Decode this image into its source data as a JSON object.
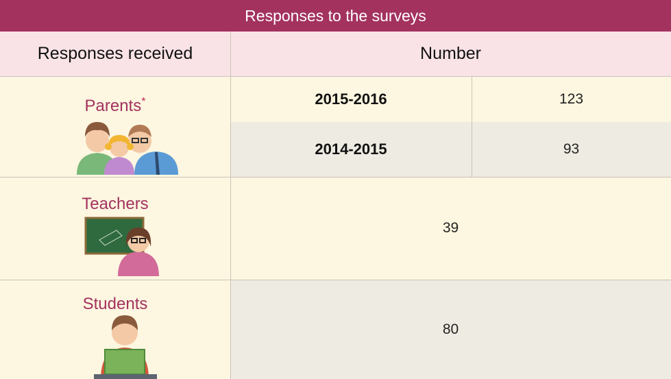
{
  "header": {
    "title": "Responses to the surveys"
  },
  "table": {
    "columns": [
      "Responses received",
      "Number"
    ],
    "parents": {
      "label": "Parents",
      "mark": "*",
      "years": [
        {
          "period": "2015-2016",
          "count": 123
        },
        {
          "period": "2014-2015",
          "count": 93
        }
      ]
    },
    "teachers": {
      "label": "Teachers",
      "count": 39
    },
    "students": {
      "label": "Students",
      "count": 80
    }
  }
}
